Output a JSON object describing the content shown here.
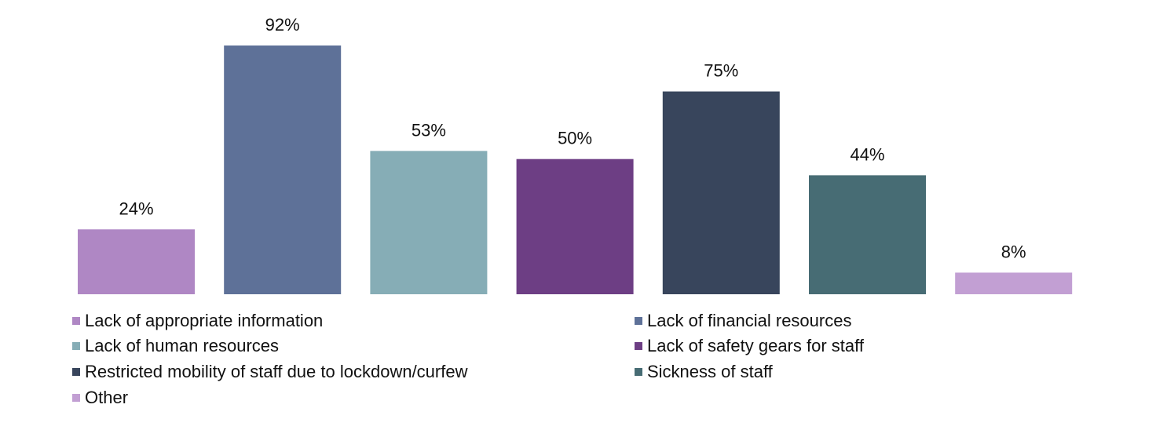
{
  "chart_data": {
    "type": "bar",
    "title": "",
    "xlabel": "",
    "ylabel": "",
    "ylim": [
      0,
      100
    ],
    "grid": false,
    "legend_position": "bottom",
    "categories": [
      "Lack of appropriate information",
      "Lack of financial resources",
      "Lack of human resources",
      "Lack of safety gears for staff",
      "Restricted mobility of staff due to lockdown/curfew",
      "Sickness of staff",
      "Other"
    ],
    "values": [
      24,
      92,
      53,
      50,
      75,
      44,
      8
    ],
    "data_labels": [
      "24%",
      "92%",
      "53%",
      "50%",
      "75%",
      "44%",
      "8%"
    ],
    "colors": [
      "#AF87C4",
      "#5E7198",
      "#86ADB6",
      "#6D3E84",
      "#38455C",
      "#476C74",
      "#C29FD3"
    ]
  }
}
